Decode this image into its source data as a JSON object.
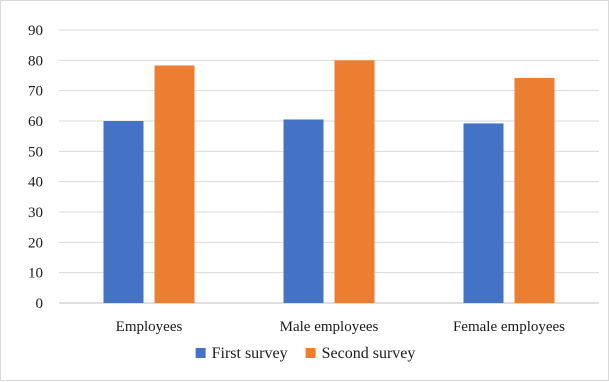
{
  "chart_data": {
    "type": "bar",
    "title": "",
    "xlabel": "",
    "ylabel": "",
    "categories": [
      "Employees",
      "Male employees",
      "Female employees"
    ],
    "series": [
      {
        "name": "First survey",
        "values": [
          60,
          60.5,
          59.2
        ],
        "color": "#4472c4"
      },
      {
        "name": "Second survey",
        "values": [
          78.3,
          80,
          74.2
        ],
        "color": "#ed7d31"
      }
    ],
    "ylim": [
      0,
      90
    ],
    "yticks": [
      0,
      10,
      20,
      30,
      40,
      50,
      60,
      70,
      80,
      90
    ],
    "grid": true,
    "legend_position": "bottom"
  }
}
